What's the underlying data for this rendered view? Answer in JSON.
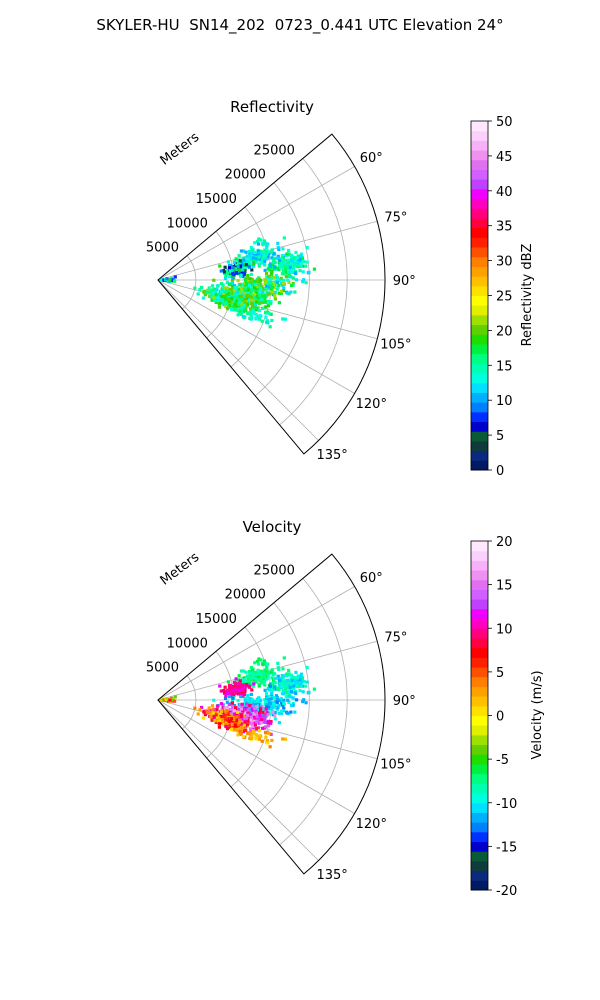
{
  "figure_title": "SKYLER-HU  SN14_202  0723_0.441 UTC Elevation 24°",
  "chart_data": [
    {
      "type": "heatmap",
      "projection": "polar-sector",
      "title": "Reflectivity",
      "range_label": "Meters",
      "range_ticks": [
        5000,
        10000,
        15000,
        20000,
        25000
      ],
      "range_max": 30000,
      "azimuth_range": [
        50,
        140
      ],
      "azimuth_ticks": [
        "60°",
        "75°",
        "90°",
        "105°",
        "120°",
        "135°"
      ],
      "azimuth_tick_values": [
        60,
        75,
        90,
        105,
        120,
        135
      ],
      "grid": true,
      "colorbar": {
        "label": "Reflectivity dBZ",
        "min": 0,
        "max": 50,
        "ticks": [
          0,
          5,
          10,
          15,
          20,
          25,
          30,
          35,
          40,
          45,
          50
        ],
        "colors": [
          "#001a66",
          "#0a2a80",
          "#0f3b3b",
          "#0a5a3a",
          "#0000cc",
          "#0030ff",
          "#0080ff",
          "#00b0ff",
          "#00e0ff",
          "#00ffe0",
          "#00ffb0",
          "#00ff80",
          "#00f040",
          "#20dd00",
          "#60d000",
          "#a0e000",
          "#e0f000",
          "#ffff00",
          "#ffe000",
          "#ffc000",
          "#ffa000",
          "#ff8000",
          "#ff5000",
          "#ff2000",
          "#ff0000",
          "#ff0040",
          "#ff0080",
          "#ff00c0",
          "#f000ff",
          "#c040ff",
          "#d060ff",
          "#e070f0",
          "#f090f0",
          "#f8b0f8",
          "#fcd0fc",
          "#ffe8ff"
        ]
      },
      "echo_clusters": [
        {
          "az": 76,
          "r": 13500,
          "az_spread": 5,
          "r_spread": 2500,
          "values": [
            10,
            16
          ],
          "count": 140
        },
        {
          "az": 83,
          "r": 17500,
          "az_spread": 4,
          "r_spread": 2200,
          "values": [
            10,
            18
          ],
          "count": 160
        },
        {
          "az": 82,
          "r": 10500,
          "az_spread": 4,
          "r_spread": 1500,
          "values": [
            2,
            20
          ],
          "count": 110
        },
        {
          "az": 92,
          "r": 14000,
          "az_spread": 5,
          "r_spread": 4000,
          "values": [
            10,
            22
          ],
          "count": 180
        },
        {
          "az": 101,
          "r": 11500,
          "az_spread": 6,
          "r_spread": 3000,
          "values": [
            12,
            22
          ],
          "count": 320
        },
        {
          "az": 106,
          "r": 9500,
          "az_spread": 5,
          "r_spread": 2500,
          "values": [
            12,
            22
          ],
          "count": 230
        },
        {
          "az": 111,
          "r": 13500,
          "az_spread": 4,
          "r_spread": 2500,
          "values": [
            12,
            16
          ],
          "count": 40
        },
        {
          "az": 89,
          "r": 1500,
          "az_spread": 8,
          "r_spread": 700,
          "values": [
            6,
            20
          ],
          "count": 25
        }
      ]
    },
    {
      "type": "heatmap",
      "projection": "polar-sector",
      "title": "Velocity",
      "range_label": "Meters",
      "range_ticks": [
        5000,
        10000,
        15000,
        20000,
        25000
      ],
      "range_max": 30000,
      "azimuth_range": [
        50,
        140
      ],
      "azimuth_ticks": [
        "60°",
        "75°",
        "90°",
        "105°",
        "120°",
        "135°"
      ],
      "azimuth_tick_values": [
        60,
        75,
        90,
        105,
        120,
        135
      ],
      "grid": true,
      "colorbar": {
        "label": "Velocity (m/s)",
        "min": -20,
        "max": 20,
        "ticks": [
          -20,
          -15,
          -10,
          -5,
          0,
          5,
          10,
          15,
          20
        ],
        "colors": [
          "#001a66",
          "#0a2a80",
          "#0f3b3b",
          "#0a5a3a",
          "#0000cc",
          "#0030ff",
          "#0080ff",
          "#00b0ff",
          "#00e0ff",
          "#00ffe0",
          "#00ffb0",
          "#00ff80",
          "#00f040",
          "#20dd00",
          "#60d000",
          "#a0e000",
          "#e0f000",
          "#ffff00",
          "#ffe000",
          "#ffc000",
          "#ffa000",
          "#ff8000",
          "#ff5000",
          "#ff2000",
          "#ff0000",
          "#ff0040",
          "#ff0080",
          "#ff00c0",
          "#f000ff",
          "#c040ff",
          "#d060ff",
          "#e070f0",
          "#f090f0",
          "#f8b0f8",
          "#fcd0fc",
          "#ffe8ff"
        ]
      },
      "echo_clusters": [
        {
          "az": 76,
          "r": 13500,
          "az_spread": 5,
          "r_spread": 2500,
          "values": [
            -9,
            -6
          ],
          "count": 140
        },
        {
          "az": 83,
          "r": 17500,
          "az_spread": 4,
          "r_spread": 2200,
          "values": [
            -12,
            -7
          ],
          "count": 160
        },
        {
          "az": 82,
          "r": 10500,
          "az_spread": 4,
          "r_spread": 1500,
          "values": [
            8,
            12
          ],
          "count": 110
        },
        {
          "az": 92,
          "r": 14000,
          "az_spread": 5,
          "r_spread": 4000,
          "values": [
            -13,
            -9
          ],
          "count": 180
        },
        {
          "az": 101,
          "r": 11500,
          "az_spread": 6,
          "r_spread": 3000,
          "values": [
            8,
            17
          ],
          "count": 320
        },
        {
          "az": 106,
          "r": 9500,
          "az_spread": 5,
          "r_spread": 2500,
          "values": [
            0,
            10
          ],
          "count": 230
        },
        {
          "az": 111,
          "r": 13500,
          "az_spread": 4,
          "r_spread": 2500,
          "values": [
            0,
            4
          ],
          "count": 40
        },
        {
          "az": 89,
          "r": 1500,
          "az_spread": 8,
          "r_spread": 700,
          "values": [
            -6,
            10
          ],
          "count": 25
        }
      ]
    }
  ]
}
